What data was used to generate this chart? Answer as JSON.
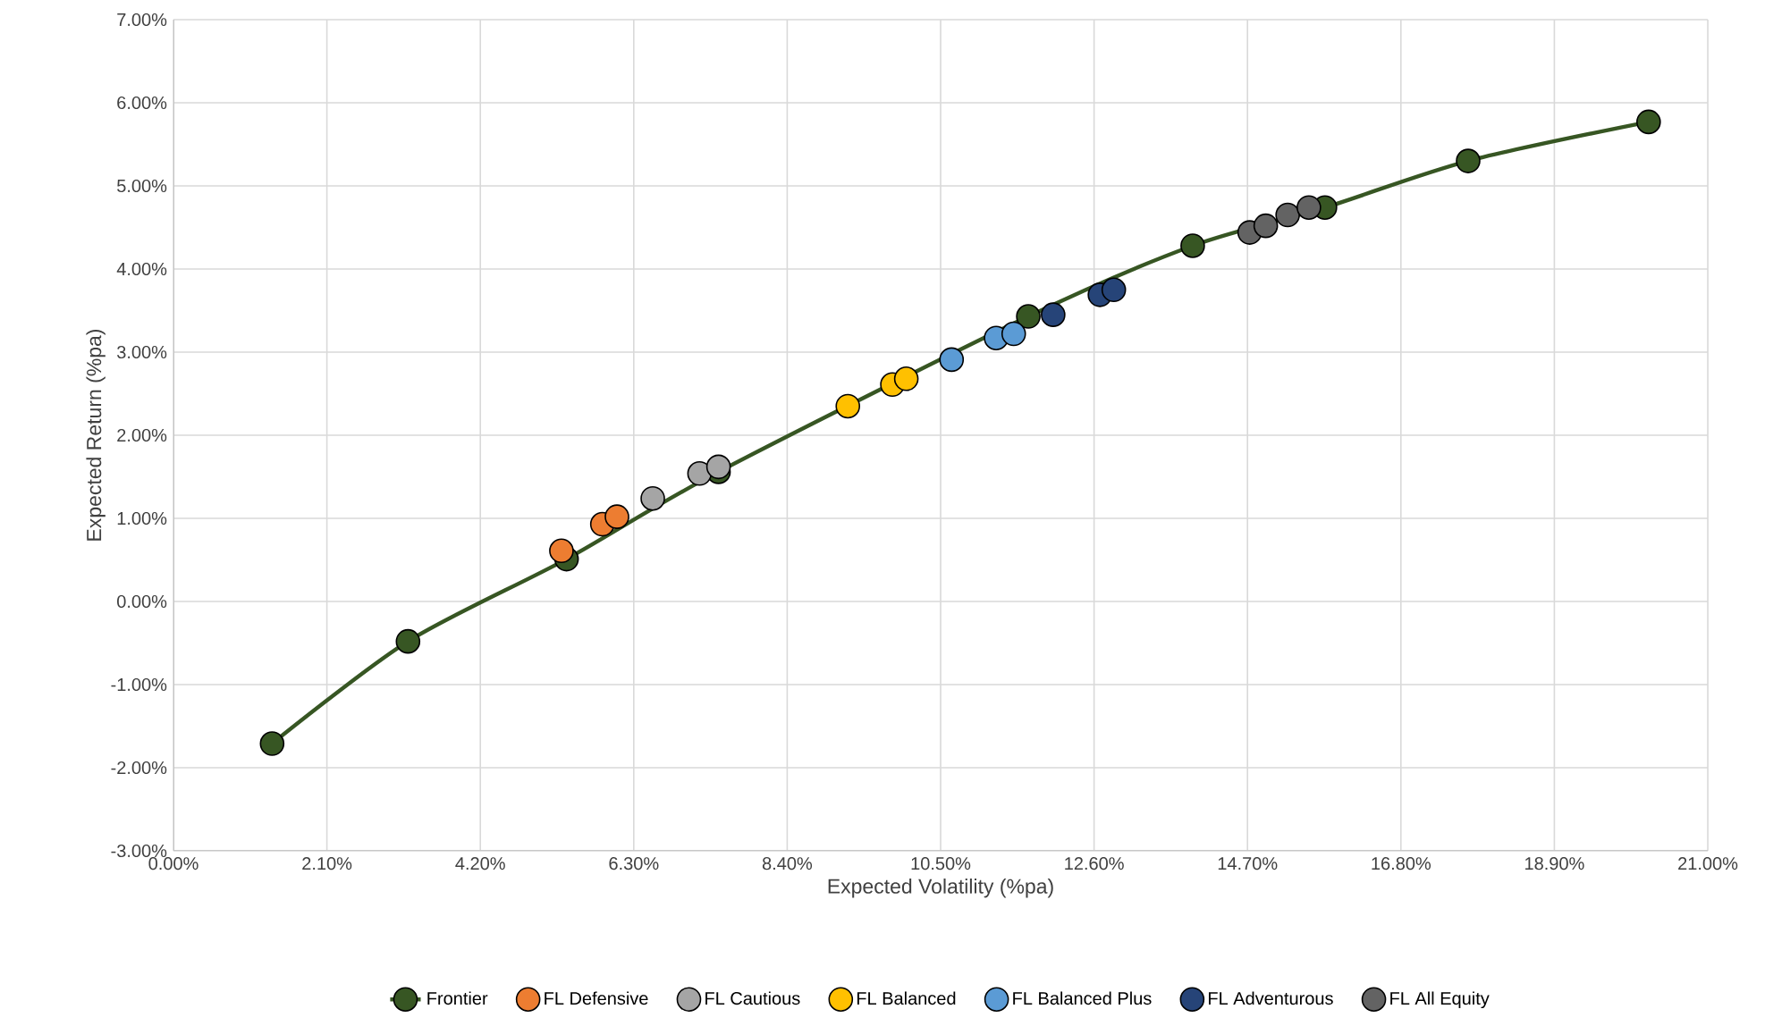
{
  "chart_data": {
    "type": "scatter",
    "xlabel": "Expected Volatility (%pa)",
    "ylabel": "Expected Return (%pa)",
    "xlim": [
      0,
      21
    ],
    "ylim": [
      -3,
      7
    ],
    "xticks": [
      {
        "value": 0,
        "label": "0.00%"
      },
      {
        "value": 2.1,
        "label": "2.10%"
      },
      {
        "value": 4.2,
        "label": "4.20%"
      },
      {
        "value": 6.3,
        "label": "6.30%"
      },
      {
        "value": 8.4,
        "label": "8.40%"
      },
      {
        "value": 10.5,
        "label": "10.50%"
      },
      {
        "value": 12.6,
        "label": "12.60%"
      },
      {
        "value": 14.7,
        "label": "14.70%"
      },
      {
        "value": 16.8,
        "label": "16.80%"
      },
      {
        "value": 18.9,
        "label": "18.90%"
      },
      {
        "value": 21,
        "label": "21.00%"
      }
    ],
    "yticks": [
      {
        "value": -3,
        "label": "-3.00%"
      },
      {
        "value": -2,
        "label": "-2.00%"
      },
      {
        "value": -1,
        "label": "-1.00%"
      },
      {
        "value": 0,
        "label": "0.00%"
      },
      {
        "value": 1,
        "label": "1.00%"
      },
      {
        "value": 2,
        "label": "2.00%"
      },
      {
        "value": 3,
        "label": "3.00%"
      },
      {
        "value": 4,
        "label": "4.00%"
      },
      {
        "value": 5,
        "label": "5.00%"
      },
      {
        "value": 6,
        "label": "6.00%"
      },
      {
        "value": 7,
        "label": "7.00%"
      }
    ],
    "grid": true,
    "legend": "bottom",
    "marker": "circle",
    "series": [
      {
        "name": "Frontier",
        "type": "line",
        "color": "#375623",
        "x": [
          1.35,
          3.21,
          5.38,
          7.46,
          11.7,
          13.95,
          15.76,
          17.72,
          20.19
        ],
        "values": [
          -1.71,
          -0.48,
          0.51,
          1.56,
          3.43,
          4.28,
          4.74,
          5.3,
          5.77
        ]
      },
      {
        "name": "FL Defensive",
        "color": "#ed7d31",
        "x": [
          5.31,
          5.87,
          6.07
        ],
        "values": [
          0.61,
          0.93,
          1.02
        ]
      },
      {
        "name": "FL Cautious",
        "color": "#a5a5a5",
        "x": [
          6.56,
          7.2,
          7.46
        ],
        "values": [
          1.24,
          1.54,
          1.62
        ]
      },
      {
        "name": "FL Balanced",
        "color": "#ffc000",
        "x": [
          9.23,
          9.84,
          10.03
        ],
        "values": [
          2.35,
          2.61,
          2.68
        ]
      },
      {
        "name": "FL Balanced Plus",
        "color": "#5b9bd5",
        "x": [
          10.65,
          11.26,
          11.5
        ],
        "values": [
          2.91,
          3.17,
          3.22
        ]
      },
      {
        "name": "FL Adventurous",
        "color": "#264478",
        "x": [
          12.04,
          12.68,
          12.87
        ],
        "values": [
          3.45,
          3.69,
          3.75
        ]
      },
      {
        "name": "FL All Equity",
        "color": "#636363",
        "x": [
          14.73,
          14.95,
          15.25,
          15.54
        ],
        "values": [
          4.44,
          4.52,
          4.65,
          4.74
        ]
      }
    ]
  }
}
